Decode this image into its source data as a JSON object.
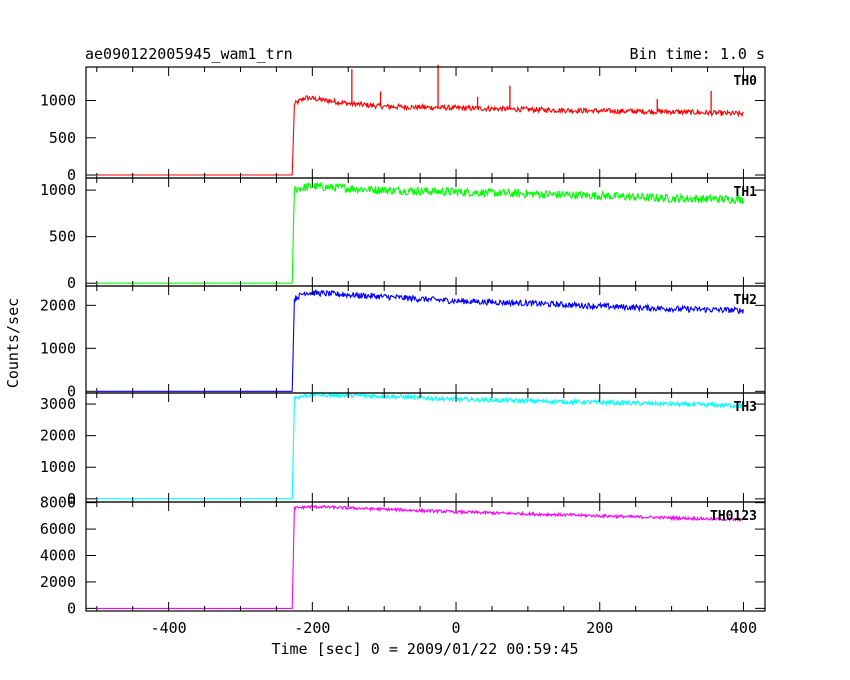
{
  "header": {
    "title": "ae090122005945_wam1_trn",
    "bin_time": "Bin time: 1.0 s"
  },
  "xlabel": "Time [sec] 0 = 2009/01/22 00:59:45",
  "ylabel": "Counts/sec",
  "chart_data": [
    {
      "type": "line",
      "name": "TH0",
      "color": "#ff0000",
      "xlim": [
        -515,
        430
      ],
      "ylim": [
        -40,
        1450
      ],
      "yticks": [
        0,
        500,
        1000
      ],
      "xticks": [
        -400,
        -200,
        0,
        200,
        400
      ],
      "ylabel": "Counts/sec",
      "xlabel": "Time [sec] 0 = 2009/01/22 00:59:45",
      "pre_level": 0,
      "start": -500,
      "onset": -228,
      "end": 400,
      "points": [
        {
          "x": -228,
          "y": 0
        },
        {
          "x": -225,
          "y": 950
        },
        {
          "x": -210,
          "y": 1040
        },
        {
          "x": -150,
          "y": 960
        },
        {
          "x": -100,
          "y": 920
        },
        {
          "x": 0,
          "y": 900
        },
        {
          "x": 100,
          "y": 880
        },
        {
          "x": 200,
          "y": 860
        },
        {
          "x": 300,
          "y": 850
        },
        {
          "x": 400,
          "y": 820
        }
      ],
      "noise": 35,
      "spikes": [
        {
          "x": -145,
          "y": 1420
        },
        {
          "x": -25,
          "y": 1480
        },
        {
          "x": 75,
          "y": 1200
        },
        {
          "x": -105,
          "y": 1120
        },
        {
          "x": 355,
          "y": 1130
        },
        {
          "x": 280,
          "y": 1020
        },
        {
          "x": 30,
          "y": 1050
        }
      ]
    },
    {
      "type": "line",
      "name": "TH1",
      "color": "#00ff00",
      "xlim": [
        -515,
        430
      ],
      "ylim": [
        -30,
        1130
      ],
      "yticks": [
        0,
        500,
        1000
      ],
      "xticks": [
        -400,
        -200,
        0,
        200,
        400
      ],
      "pre_level": 0,
      "start": -500,
      "onset": -228,
      "end": 400,
      "points": [
        {
          "x": -228,
          "y": 0
        },
        {
          "x": -225,
          "y": 1010
        },
        {
          "x": -200,
          "y": 1040
        },
        {
          "x": -100,
          "y": 1000
        },
        {
          "x": 0,
          "y": 980
        },
        {
          "x": 100,
          "y": 960
        },
        {
          "x": 200,
          "y": 940
        },
        {
          "x": 300,
          "y": 910
        },
        {
          "x": 400,
          "y": 900
        }
      ],
      "noise": 45,
      "spikes": []
    },
    {
      "type": "line",
      "name": "TH2",
      "color": "#0000ff",
      "xlim": [
        -515,
        430
      ],
      "ylim": [
        -40,
        2450
      ],
      "yticks": [
        0,
        1000,
        2000
      ],
      "xticks": [
        -400,
        -200,
        0,
        200,
        400
      ],
      "pre_level": 0,
      "start": -500,
      "onset": -228,
      "end": 400,
      "points": [
        {
          "x": -228,
          "y": 0
        },
        {
          "x": -225,
          "y": 2150
        },
        {
          "x": -210,
          "y": 2300
        },
        {
          "x": -100,
          "y": 2200
        },
        {
          "x": 0,
          "y": 2100
        },
        {
          "x": 100,
          "y": 2050
        },
        {
          "x": 200,
          "y": 1980
        },
        {
          "x": 300,
          "y": 1920
        },
        {
          "x": 400,
          "y": 1880
        }
      ],
      "noise": 70,
      "spikes": []
    },
    {
      "type": "line",
      "name": "TH3",
      "color": "#00ffff",
      "xlim": [
        -515,
        430
      ],
      "ylim": [
        -100,
        3350
      ],
      "yticks": [
        0,
        1000,
        2000,
        3000
      ],
      "xticks": [
        -400,
        -200,
        0,
        200,
        400
      ],
      "pre_level": 0,
      "start": -500,
      "onset": -228,
      "end": 400,
      "points": [
        {
          "x": -228,
          "y": 0
        },
        {
          "x": -225,
          "y": 3200
        },
        {
          "x": -200,
          "y": 3300
        },
        {
          "x": -100,
          "y": 3250
        },
        {
          "x": 0,
          "y": 3150
        },
        {
          "x": 100,
          "y": 3100
        },
        {
          "x": 200,
          "y": 3050
        },
        {
          "x": 300,
          "y": 3000
        },
        {
          "x": 400,
          "y": 2950
        }
      ],
      "noise": 70,
      "spikes": []
    },
    {
      "type": "line",
      "name": "TH0123",
      "color": "#ff00ff",
      "xlim": [
        -515,
        430
      ],
      "ylim": [
        -200,
        8050
      ],
      "yticks": [
        0,
        2000,
        4000,
        6000,
        8000
      ],
      "xticks": [
        -400,
        -200,
        0,
        200,
        400
      ],
      "pre_level": 0,
      "start": -500,
      "onset": -228,
      "end": 400,
      "points": [
        {
          "x": -228,
          "y": 0
        },
        {
          "x": -225,
          "y": 7600
        },
        {
          "x": -200,
          "y": 7700
        },
        {
          "x": -100,
          "y": 7500
        },
        {
          "x": 0,
          "y": 7300
        },
        {
          "x": 100,
          "y": 7150
        },
        {
          "x": 200,
          "y": 7000
        },
        {
          "x": 300,
          "y": 6850
        },
        {
          "x": 400,
          "y": 6700
        }
      ],
      "noise": 110,
      "spikes": []
    }
  ]
}
